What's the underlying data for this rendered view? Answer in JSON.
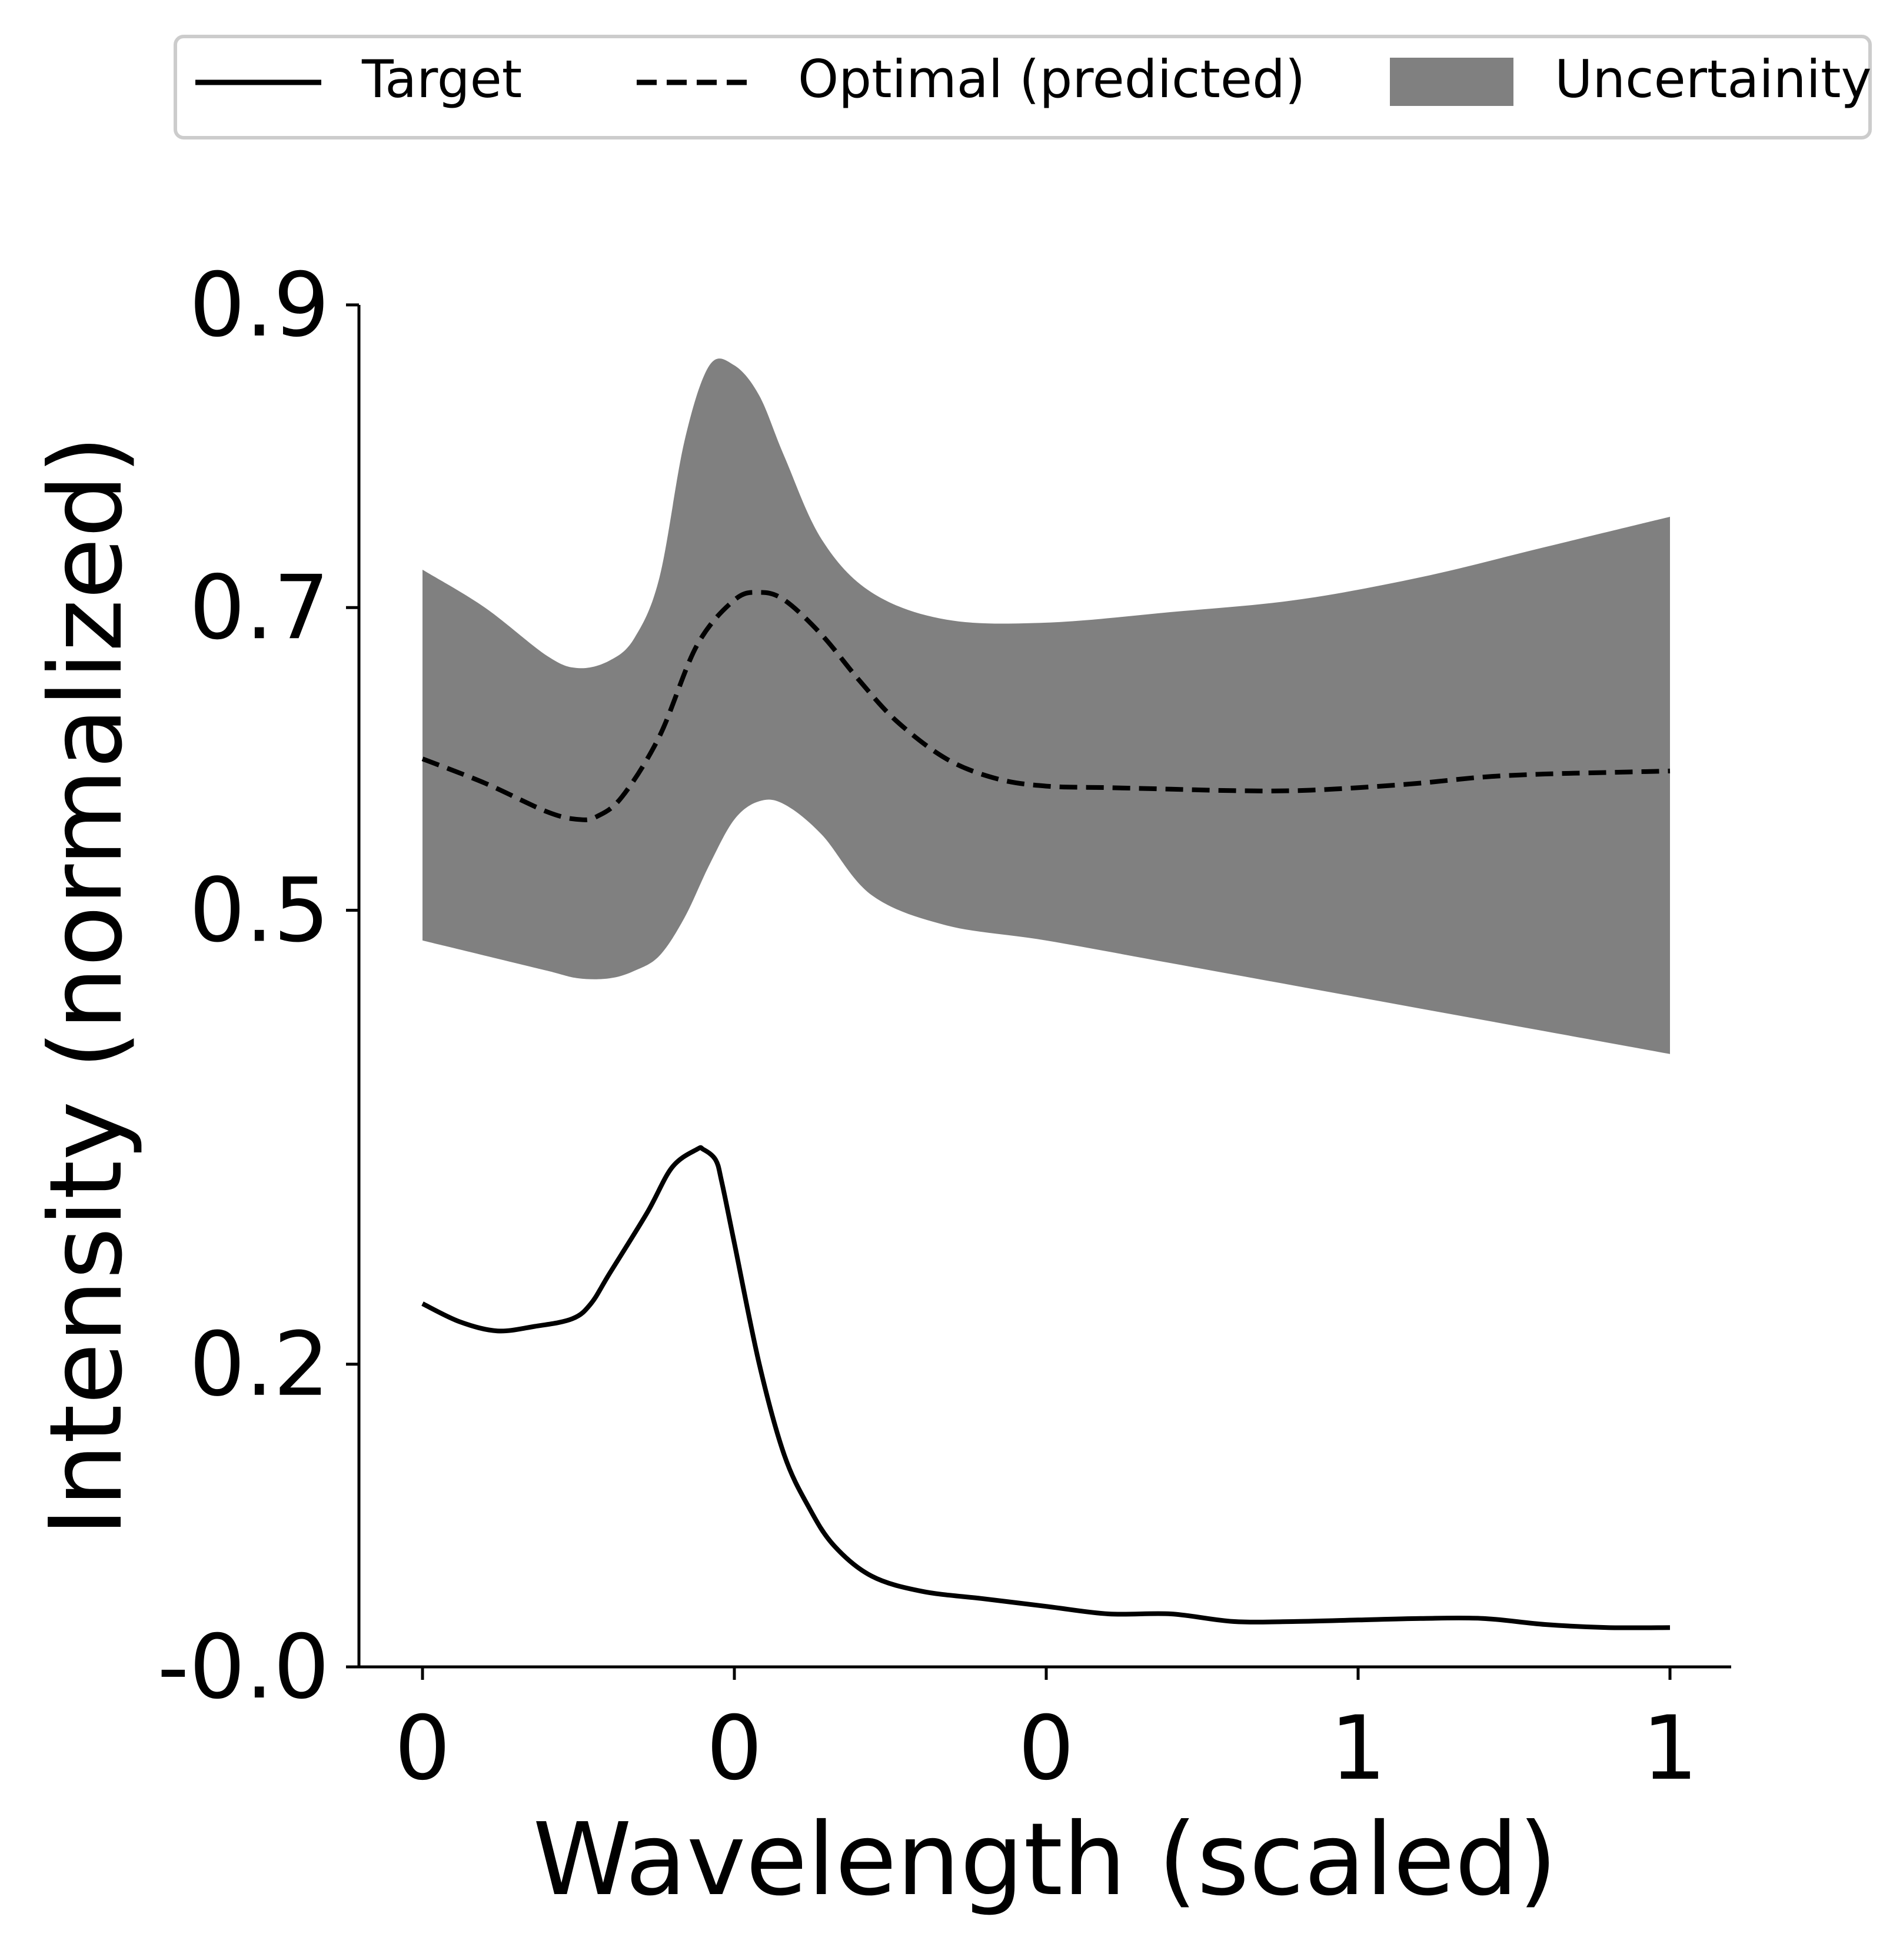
{
  "chart_data": {
    "type": "line",
    "title": "",
    "xlabel": "Wavelength (scaled)",
    "ylabel": "Intensity (normalized)",
    "xlim": [
      0,
      1
    ],
    "ylim": [
      0,
      0.9
    ],
    "x_ticks": [
      {
        "value": 0.0,
        "label": "0"
      },
      {
        "value": 0.25,
        "label": "0"
      },
      {
        "value": 0.5,
        "label": "0"
      },
      {
        "value": 0.75,
        "label": "1"
      },
      {
        "value": 1.0,
        "label": "1"
      }
    ],
    "y_ticks": [
      {
        "value": 0.0,
        "label": "-0.0"
      },
      {
        "value": 0.2,
        "label": "0.2"
      },
      {
        "value": 0.5,
        "label": "0.5"
      },
      {
        "value": 0.7,
        "label": "0.7"
      },
      {
        "value": 0.9,
        "label": "0.9"
      }
    ],
    "grid": false,
    "legend_position": "top",
    "legend": [
      {
        "label": "Target",
        "style": "solid"
      },
      {
        "label": "Optimal (predicted)",
        "style": "dashed"
      },
      {
        "label": "Uncertainity",
        "style": "fill"
      }
    ],
    "colors": {
      "line": "#000000",
      "band": "#808080"
    },
    "series": [
      {
        "name": "Target",
        "style": "solid",
        "x": [
          0.0,
          0.03,
          0.06,
          0.09,
          0.12,
          0.135,
          0.15,
          0.18,
          0.2,
          0.22,
          0.225,
          0.235,
          0.24,
          0.25,
          0.27,
          0.29,
          0.31,
          0.33,
          0.36,
          0.4,
          0.45,
          0.5,
          0.55,
          0.6,
          0.65,
          0.7,
          0.75,
          0.8,
          0.85,
          0.9,
          0.95,
          1.0
        ],
        "y": [
          0.24,
          0.228,
          0.222,
          0.225,
          0.23,
          0.24,
          0.26,
          0.3,
          0.33,
          0.342,
          0.342,
          0.335,
          0.32,
          0.28,
          0.2,
          0.14,
          0.105,
          0.08,
          0.06,
          0.05,
          0.045,
          0.04,
          0.035,
          0.035,
          0.03,
          0.03,
          0.031,
          0.032,
          0.032,
          0.028,
          0.026,
          0.026
        ]
      },
      {
        "name": "Optimal (predicted)",
        "style": "dashed",
        "x": [
          0.0,
          0.05,
          0.1,
          0.125,
          0.14,
          0.16,
          0.19,
          0.22,
          0.25,
          0.27,
          0.29,
          0.32,
          0.35,
          0.38,
          0.42,
          0.46,
          0.5,
          0.55,
          0.6,
          0.65,
          0.7,
          0.75,
          0.8,
          0.85,
          0.9,
          0.95,
          1.0
        ],
        "y": [
          0.6,
          0.584,
          0.565,
          0.56,
          0.562,
          0.575,
          0.615,
          0.675,
          0.705,
          0.71,
          0.705,
          0.682,
          0.652,
          0.625,
          0.6,
          0.587,
          0.582,
          0.581,
          0.58,
          0.579,
          0.579,
          0.581,
          0.584,
          0.588,
          0.59,
          0.591,
          0.592
        ]
      },
      {
        "name": "Uncertainity",
        "style": "band",
        "x": [
          0.0,
          0.05,
          0.1,
          0.125,
          0.15,
          0.17,
          0.19,
          0.21,
          0.23,
          0.25,
          0.27,
          0.29,
          0.32,
          0.36,
          0.42,
          0.5,
          0.6,
          0.7,
          0.8,
          0.9,
          1.0
        ],
        "lower": [
          0.48,
          0.47,
          0.46,
          0.455,
          0.455,
          0.46,
          0.47,
          0.495,
          0.53,
          0.56,
          0.572,
          0.57,
          0.55,
          0.51,
          0.49,
          0.48,
          0.465,
          0.45,
          0.435,
          0.42,
          0.405
        ],
        "upper": [
          0.725,
          0.7,
          0.668,
          0.66,
          0.665,
          0.68,
          0.72,
          0.81,
          0.86,
          0.86,
          0.84,
          0.8,
          0.745,
          0.71,
          0.692,
          0.69,
          0.697,
          0.705,
          0.72,
          0.74,
          0.76
        ]
      }
    ]
  }
}
